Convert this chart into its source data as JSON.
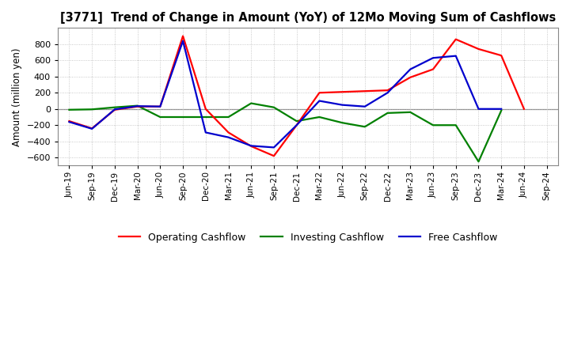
{
  "title": "[3771]  Trend of Change in Amount (YoY) of 12Mo Moving Sum of Cashflows",
  "ylabel": "Amount (million yen)",
  "x_labels": [
    "Jun-19",
    "Sep-19",
    "Dec-19",
    "Mar-20",
    "Jun-20",
    "Sep-20",
    "Dec-20",
    "Mar-21",
    "Jun-21",
    "Sep-21",
    "Dec-21",
    "Mar-22",
    "Jun-22",
    "Sep-22",
    "Dec-22",
    "Mar-23",
    "Jun-23",
    "Sep-23",
    "Dec-23",
    "Mar-24",
    "Jun-24",
    "Sep-24"
  ],
  "operating": [
    -150,
    -240,
    -10,
    30,
    30,
    900,
    0,
    -290,
    -460,
    -580,
    -200,
    200,
    210,
    220,
    230,
    390,
    490,
    860,
    740,
    660,
    0,
    null
  ],
  "investing": [
    -10,
    -5,
    20,
    40,
    -100,
    -100,
    -100,
    -100,
    70,
    20,
    -150,
    -100,
    -170,
    -220,
    -50,
    -40,
    -200,
    -200,
    -650,
    -20,
    null,
    null
  ],
  "free": [
    -160,
    -245,
    -5,
    35,
    30,
    840,
    -290,
    -350,
    -455,
    -475,
    -200,
    100,
    50,
    30,
    200,
    490,
    630,
    655,
    0,
    0,
    null,
    null
  ],
  "operating_color": "#ff0000",
  "investing_color": "#008000",
  "free_color": "#0000cd",
  "background_color": "#ffffff",
  "grid_color": "#bbbbbb",
  "ylim": [
    -700,
    1000
  ],
  "yticks": [
    -600,
    -400,
    -200,
    0,
    200,
    400,
    600,
    800
  ],
  "legend_labels": [
    "Operating Cashflow",
    "Investing Cashflow",
    "Free Cashflow"
  ],
  "title_fontsize": 10.5,
  "ylabel_fontsize": 8.5,
  "tick_fontsize": 8,
  "xtick_fontsize": 7.5,
  "legend_fontsize": 9
}
